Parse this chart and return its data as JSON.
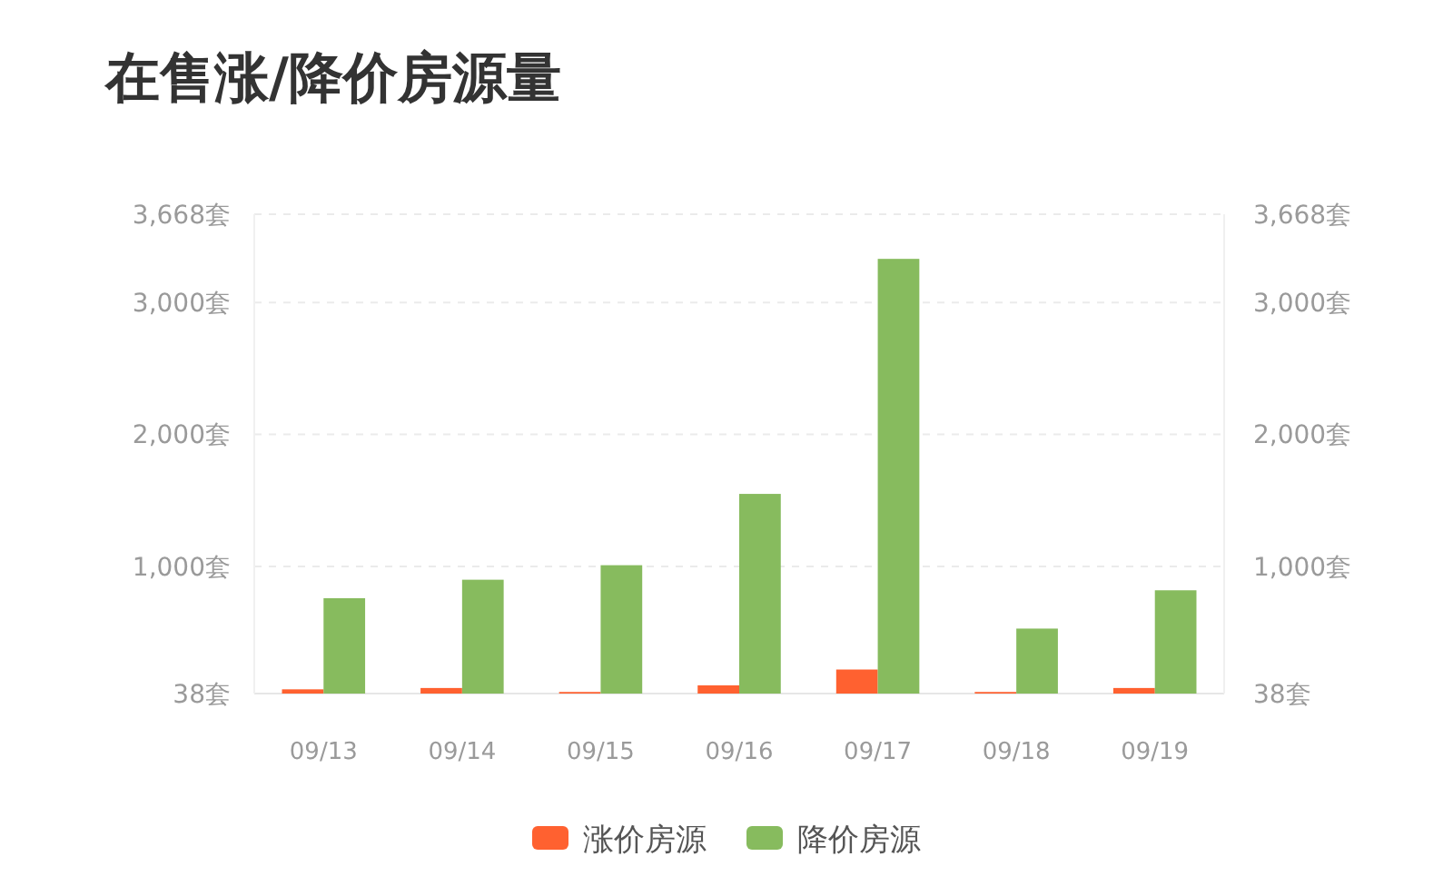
{
  "chart_data": {
    "type": "bar",
    "title": "在售涨/降价房源量",
    "categories": [
      "09/13",
      "09/14",
      "09/15",
      "09/16",
      "09/17",
      "09/18",
      "09/19"
    ],
    "series": [
      {
        "name": "涨价房源",
        "color": "#ff6130",
        "values": [
          70,
          80,
          50,
          100,
          220,
          50,
          80
        ]
      },
      {
        "name": "降价房源",
        "color": "#87bb5e",
        "values": [
          760,
          900,
          1010,
          1550,
          3330,
          530,
          820
        ]
      }
    ],
    "ylim": [
      38,
      3668
    ],
    "yticks": [
      {
        "value": 38,
        "label": "38套"
      },
      {
        "value": 1000,
        "label": "1,000套"
      },
      {
        "value": 2000,
        "label": "2,000套"
      },
      {
        "value": 3000,
        "label": "3,000套"
      },
      {
        "value": 3668,
        "label": "3,668套"
      }
    ],
    "y2lim": [
      38,
      3668
    ],
    "y2ticks": [
      {
        "value": 38,
        "label": "38套"
      },
      {
        "value": 1000,
        "label": "1,000套"
      },
      {
        "value": 2000,
        "label": "2,000套"
      },
      {
        "value": 3000,
        "label": "3,000套"
      },
      {
        "value": 3668,
        "label": "3,668套"
      }
    ],
    "grid": "y",
    "legend": "bottom"
  }
}
